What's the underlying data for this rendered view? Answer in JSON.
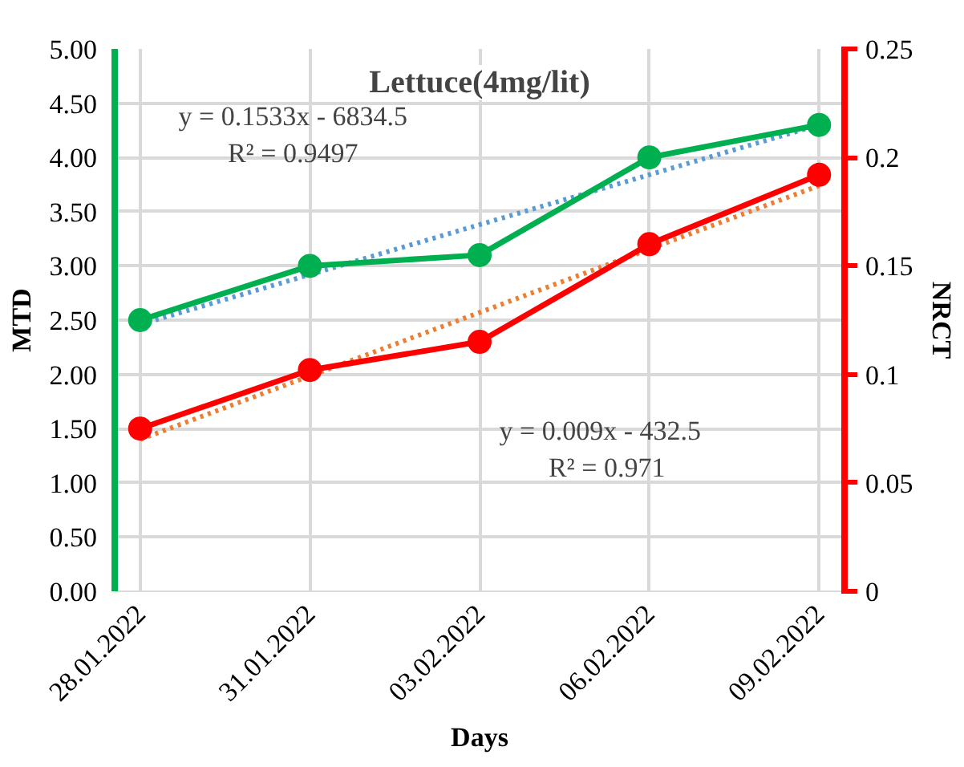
{
  "chart_data": {
    "type": "line",
    "title": "Lettuce(4mg/lit)",
    "xlabel": "Days",
    "ylabel": "MTD",
    "y2label": "NRCT",
    "categories": [
      "28.01.2022",
      "31.01.2022",
      "03.02.2022",
      "06.02.2022",
      "09.02.2022"
    ],
    "series": [
      {
        "name": null,
        "color": "#00b050",
        "values": [
          2.5,
          3.0,
          3.1,
          4.0,
          4.3
        ],
        "marker": "circle",
        "line_style": "solid"
      },
      {
        "name": null,
        "color": "#ff0000",
        "values": [
          0.075,
          0.102,
          0.115,
          0.16,
          0.192
        ],
        "axis": "y2",
        "marker": "circle",
        "line_style": "solid"
      },
      {
        "name": null,
        "color": "#5b9bd5",
        "x": [
          "28.01.2022",
          "09.02.2022"
        ],
        "values": [
          2.46,
          4.3
        ],
        "marker": "none",
        "line_style": "dotted"
      },
      {
        "name": null,
        "color": "#ed7d31",
        "x": [
          "28.01.2022",
          "09.02.2022"
        ],
        "values": [
          0.07,
          0.187
        ],
        "axis": "y2",
        "marker": "none",
        "line_style": "dotted"
      }
    ],
    "ylim": [
      0,
      5
    ],
    "yticks": [
      {
        "value": 0,
        "label": "0.00"
      },
      {
        "value": 0.5,
        "label": "0.50"
      },
      {
        "value": 1,
        "label": "1.00"
      },
      {
        "value": 1.5,
        "label": "1.50"
      },
      {
        "value": 2,
        "label": "2.00"
      },
      {
        "value": 2.5,
        "label": "2.50"
      },
      {
        "value": 3,
        "label": "3.00"
      },
      {
        "value": 3.5,
        "label": "3.50"
      },
      {
        "value": 4,
        "label": "4.00"
      },
      {
        "value": 4.5,
        "label": "4.50"
      },
      {
        "value": 5,
        "label": "5.00"
      }
    ],
    "y2lim": [
      0,
      0.25
    ],
    "y2ticks": [
      0,
      0.05,
      0.1,
      0.15,
      0.2,
      0.25
    ],
    "annotations": [
      "y = 0.1533x - 6834.5\nR² = 0.9497",
      "y   = 0.009x - 432.5\nR² = 0.971"
    ],
    "grid": true
  }
}
